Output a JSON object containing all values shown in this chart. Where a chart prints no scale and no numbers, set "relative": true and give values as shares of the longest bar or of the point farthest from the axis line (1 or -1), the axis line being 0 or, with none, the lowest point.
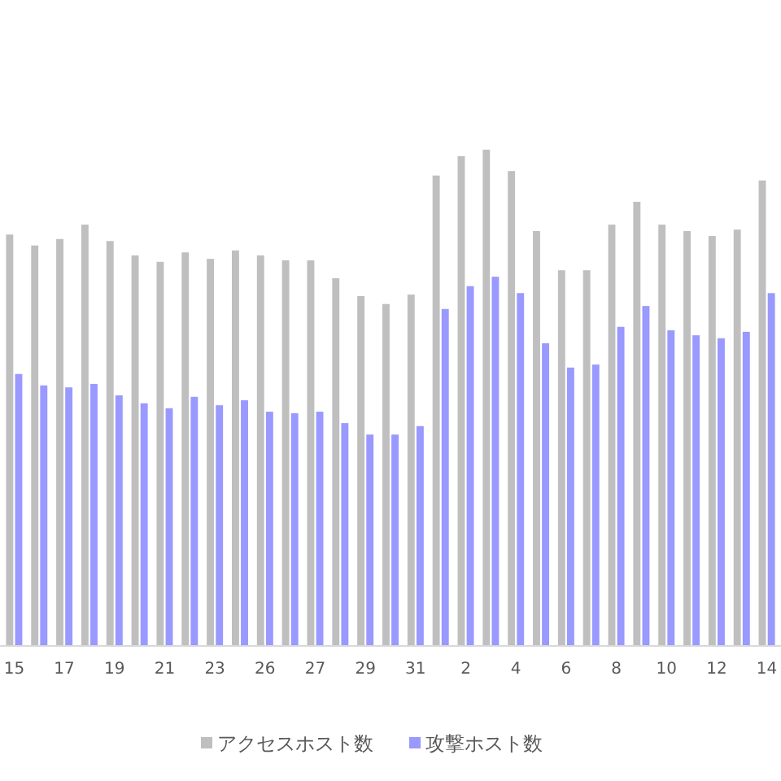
{
  "chart_data": {
    "type": "bar",
    "relative": true,
    "legend": "bottom",
    "categories": [
      "15",
      null,
      "17",
      null,
      "19",
      null,
      "21",
      null,
      "23",
      null,
      "26",
      null,
      "27",
      null,
      "29",
      null,
      "31",
      null,
      "2",
      null,
      "4",
      null,
      "6",
      null,
      "8",
      null,
      "10",
      null,
      "12",
      null,
      "14"
    ],
    "series": [
      {
        "name": "アクセスホスト数",
        "color": "#bfbfbf",
        "values": [
          0.829,
          0.807,
          0.82,
          0.849,
          0.816,
          0.787,
          0.774,
          0.793,
          0.78,
          0.797,
          0.787,
          0.777,
          0.777,
          0.741,
          0.705,
          0.689,
          0.708,
          0.948,
          0.987,
          1,
          0.957,
          0.836,
          0.757,
          0.757,
          0.849,
          0.895,
          0.849,
          0.836,
          0.826,
          0.839,
          0.938
        ]
      },
      {
        "name": "攻撃ホスト数",
        "color": "#9999ff",
        "values": [
          0.548,
          0.525,
          0.521,
          0.528,
          0.505,
          0.489,
          0.479,
          0.502,
          0.485,
          0.495,
          0.472,
          0.469,
          0.472,
          0.449,
          0.426,
          0.426,
          0.443,
          0.679,
          0.725,
          0.744,
          0.711,
          0.61,
          0.561,
          0.567,
          0.643,
          0.685,
          0.636,
          0.626,
          0.62,
          0.633,
          0.711
        ]
      }
    ]
  }
}
